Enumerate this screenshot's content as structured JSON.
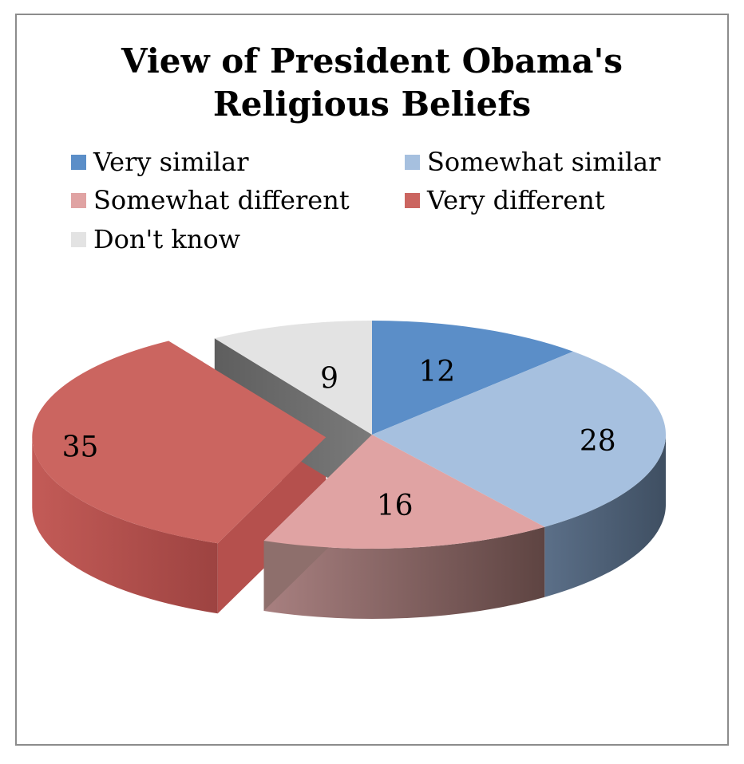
{
  "chart_data": {
    "type": "pie",
    "title_lines": [
      "View of President Obama's",
      "Religious Beliefs"
    ],
    "categories": [
      "Very similar",
      "Somewhat similar",
      "Somewhat different",
      "Very different",
      "Don't know"
    ],
    "values": [
      12,
      28,
      16,
      35,
      9
    ],
    "colors": [
      "#5b8ec8",
      "#a6c0df",
      "#e0a3a3",
      "#cb6560",
      "#e3e3e3"
    ],
    "exploded": [
      "Very different"
    ],
    "legend_position": "top",
    "style": "3d"
  }
}
